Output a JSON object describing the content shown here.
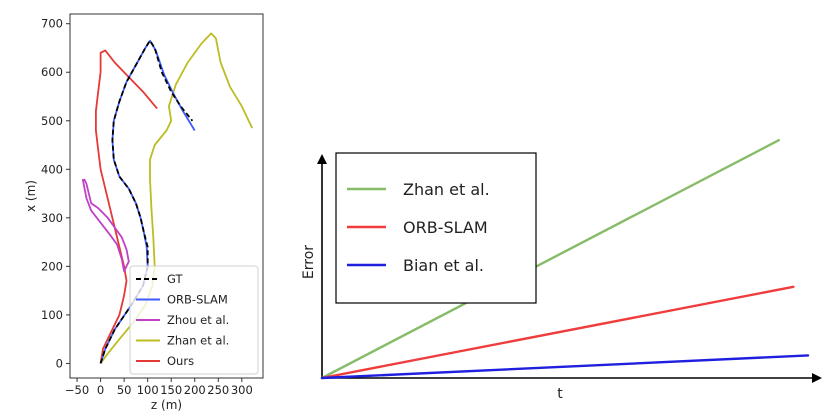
{
  "chart_data": [
    {
      "type": "line",
      "title": "",
      "xlabel": "z (m)",
      "ylabel": "x (m)",
      "xlim": [
        -65,
        345
      ],
      "ylim": [
        -30,
        720
      ],
      "xticks": [
        -50,
        0,
        50,
        100,
        150,
        200,
        250,
        300
      ],
      "xtick_labels": [
        "−50",
        "0",
        "50",
        "100",
        "150",
        "200",
        "250",
        "300"
      ],
      "yticks": [
        0,
        100,
        200,
        300,
        400,
        500,
        600,
        700
      ],
      "ytick_labels": [
        "0",
        "100",
        "200",
        "300",
        "400",
        "500",
        "600",
        "700"
      ],
      "grid": false,
      "legend_position": "bottom-right",
      "series": [
        {
          "name": "GT",
          "color": "#000000",
          "style": "dashed",
          "points": [
            [
              0,
              0
            ],
            [
              10,
              30
            ],
            [
              30,
              70
            ],
            [
              65,
              120
            ],
            [
              90,
              160
            ],
            [
              100,
              200
            ],
            [
              100,
              240
            ],
            [
              92,
              270
            ],
            [
              85,
              300
            ],
            [
              75,
              330
            ],
            [
              60,
              360
            ],
            [
              40,
              385
            ],
            [
              28,
              420
            ],
            [
              25,
              460
            ],
            [
              28,
              500
            ],
            [
              40,
              540
            ],
            [
              55,
              580
            ],
            [
              78,
              620
            ],
            [
              95,
              650
            ],
            [
              105,
              665
            ],
            [
              115,
              650
            ],
            [
              130,
              600
            ],
            [
              150,
              560
            ],
            [
              170,
              530
            ],
            [
              195,
              500
            ]
          ]
        },
        {
          "name": "ORB-SLAM",
          "color": "#3d5afe",
          "style": "solid",
          "points": [
            [
              0,
              0
            ],
            [
              10,
              30
            ],
            [
              30,
              70
            ],
            [
              65,
              120
            ],
            [
              90,
              160
            ],
            [
              100,
              200
            ],
            [
              98,
              240
            ],
            [
              92,
              270
            ],
            [
              85,
              300
            ],
            [
              75,
              330
            ],
            [
              60,
              360
            ],
            [
              40,
              385
            ],
            [
              28,
              420
            ],
            [
              25,
              460
            ],
            [
              28,
              500
            ],
            [
              40,
              540
            ],
            [
              55,
              580
            ],
            [
              78,
              620
            ],
            [
              95,
              650
            ],
            [
              105,
              665
            ],
            [
              117,
              645
            ],
            [
              135,
              595
            ],
            [
              155,
              555
            ],
            [
              175,
              520
            ],
            [
              200,
              480
            ]
          ]
        },
        {
          "name": "Zhou et al.",
          "color": "#c040c8",
          "style": "solid",
          "points": [
            [
              -35,
              380
            ],
            [
              -30,
              370
            ],
            [
              -25,
              350
            ],
            [
              -20,
              330
            ],
            [
              -5,
              320
            ],
            [
              15,
              300
            ],
            [
              30,
              280
            ],
            [
              45,
              260
            ],
            [
              55,
              235
            ],
            [
              60,
              210
            ],
            [
              50,
              190
            ],
            [
              45,
              215
            ],
            [
              35,
              245
            ],
            [
              20,
              265
            ],
            [
              0,
              290
            ],
            [
              -20,
              315
            ],
            [
              -30,
              340
            ],
            [
              -38,
              380
            ]
          ]
        },
        {
          "name": "Zhan et al.",
          "color": "#bcbd22",
          "style": "solid",
          "points": [
            [
              0,
              0
            ],
            [
              15,
              20
            ],
            [
              40,
              50
            ],
            [
              70,
              85
            ],
            [
              95,
              120
            ],
            [
              110,
              160
            ],
            [
              115,
              200
            ],
            [
              112,
              260
            ],
            [
              108,
              320
            ],
            [
              105,
              380
            ],
            [
              105,
              420
            ],
            [
              115,
              450
            ],
            [
              140,
              480
            ],
            [
              150,
              500
            ],
            [
              145,
              530
            ],
            [
              160,
              575
            ],
            [
              185,
              620
            ],
            [
              215,
              660
            ],
            [
              235,
              680
            ],
            [
              245,
              670
            ],
            [
              255,
              620
            ],
            [
              275,
              570
            ],
            [
              300,
              530
            ],
            [
              322,
              485
            ]
          ]
        },
        {
          "name": "Ours",
          "color": "#e53935",
          "style": "solid",
          "points": [
            [
              0,
              0
            ],
            [
              5,
              30
            ],
            [
              20,
              60
            ],
            [
              40,
              100
            ],
            [
              50,
              140
            ],
            [
              55,
              170
            ],
            [
              50,
              200
            ],
            [
              40,
              240
            ],
            [
              30,
              280
            ],
            [
              20,
              320
            ],
            [
              10,
              360
            ],
            [
              0,
              400
            ],
            [
              -5,
              440
            ],
            [
              -10,
              480
            ],
            [
              -10,
              520
            ],
            [
              -5,
              560
            ],
            [
              0,
              600
            ],
            [
              0,
              640
            ],
            [
              10,
              645
            ],
            [
              30,
              620
            ],
            [
              60,
              590
            ],
            [
              90,
              560
            ],
            [
              120,
              525
            ]
          ]
        }
      ]
    },
    {
      "type": "line",
      "title": "",
      "xlabel": "t",
      "ylabel": "Error",
      "xlim": [
        0,
        1
      ],
      "ylim": [
        0,
        1
      ],
      "grid": false,
      "axis_ticks": false,
      "legend_position": "top-left",
      "series": [
        {
          "name": "Zhan et al.",
          "color": "#86bc67",
          "x": [
            0,
            0.94
          ],
          "y": [
            0,
            0.6
          ]
        },
        {
          "name": "ORB-SLAM",
          "color": "#f03c3c",
          "x": [
            0,
            0.97
          ],
          "y": [
            0,
            0.23
          ]
        },
        {
          "name": "Bian et al.",
          "color": "#1f1fe0",
          "x": [
            0,
            1.0
          ],
          "y": [
            0,
            0.057
          ]
        }
      ]
    }
  ]
}
